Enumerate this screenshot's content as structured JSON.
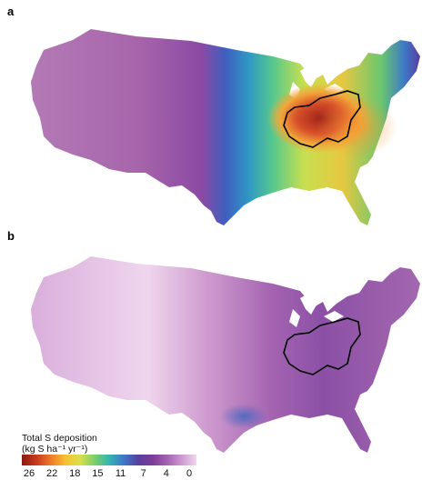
{
  "panels": [
    {
      "label": "a",
      "style": "dense high-deposition hotspot over Ohio River Valley"
    },
    {
      "label": "b",
      "style": "low deposition, faint"
    }
  ],
  "legend": {
    "title_line1": "Total S deposition",
    "title_line2": "(kg S ha⁻¹ yr⁻¹)",
    "ticks": [
      "26",
      "22",
      "18",
      "15",
      "11",
      "7",
      "4",
      "0"
    ],
    "colors": [
      "#8a1a10",
      "#c8391b",
      "#ef7a2a",
      "#f6c133",
      "#d8e04a",
      "#7bcf6a",
      "#33b5b3",
      "#3c78c8",
      "#5a3f9e",
      "#7d3c98",
      "#a463b0",
      "#cd9ad0",
      "#efd8ef"
    ]
  },
  "colors": {
    "low_purple": "#a764ab",
    "pale": "#e7c6e3",
    "mid_purple": "#8647a4",
    "blue": "#3d64c0",
    "outline": "#000000"
  }
}
